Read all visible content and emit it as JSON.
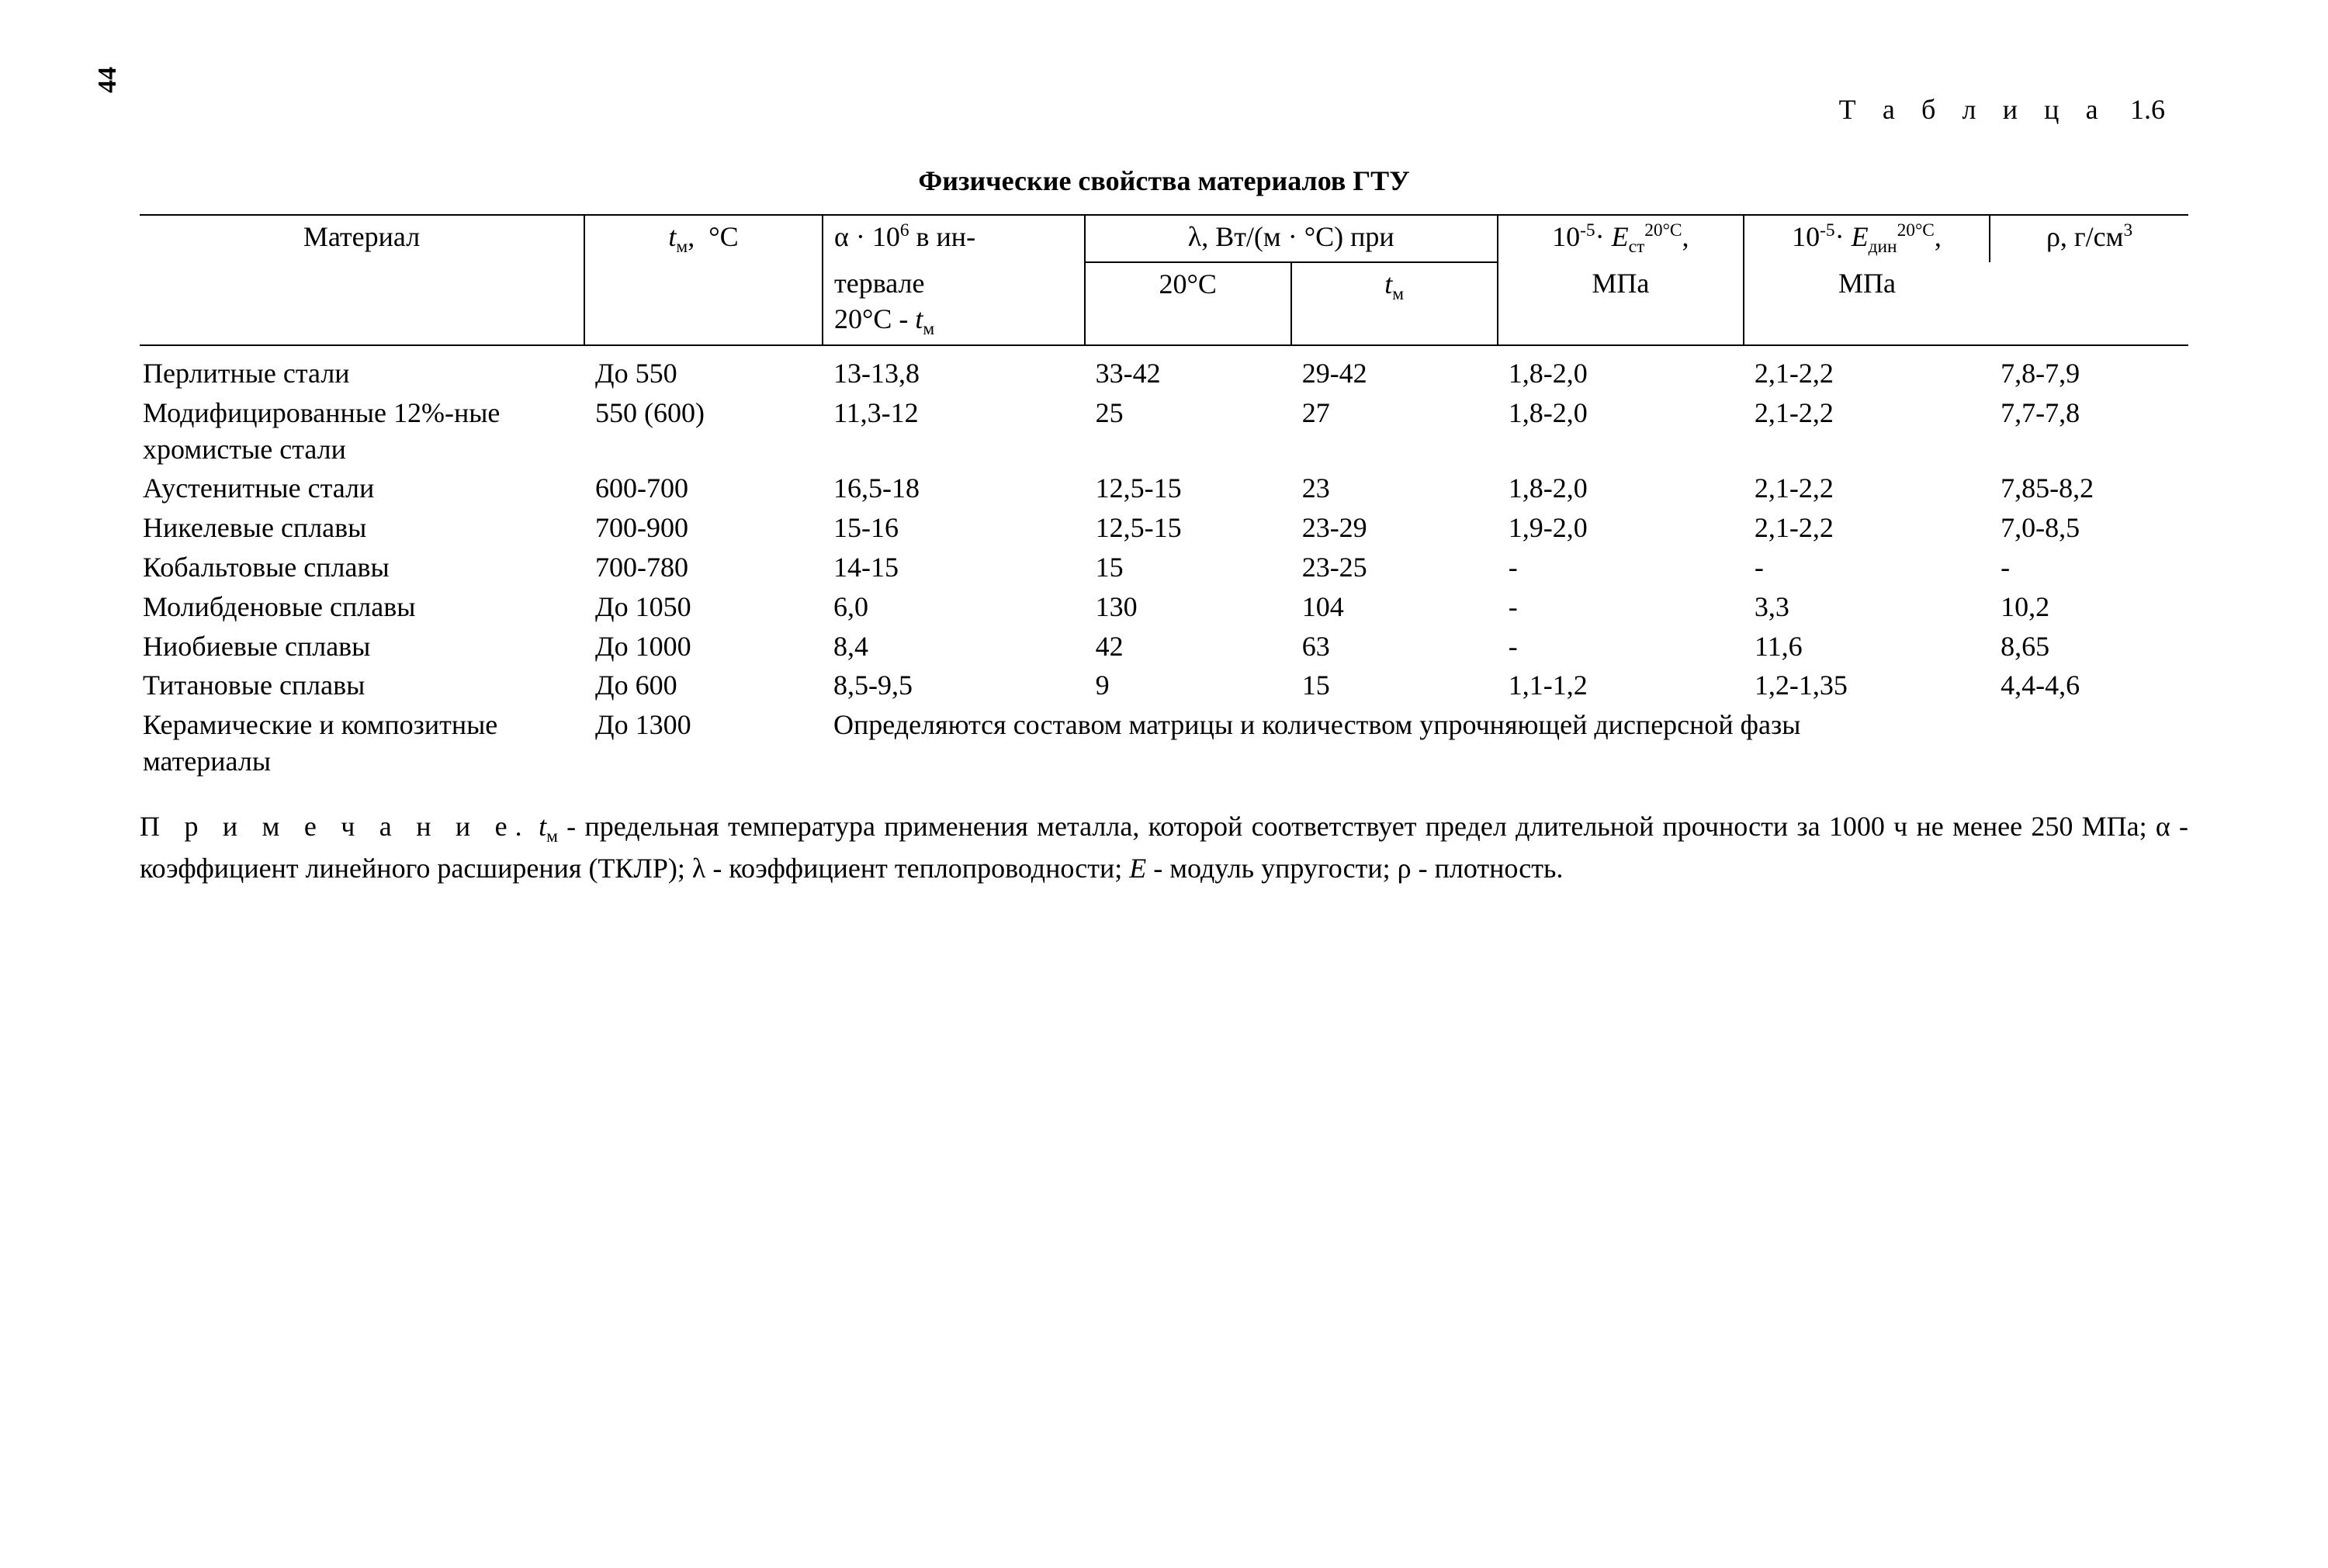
{
  "page_number": "44",
  "table_label_word": "Т а б л и ц а",
  "table_label_num": "1.6",
  "caption": "Физические свойства материалов ГТУ",
  "columns": {
    "material": "Материал",
    "tm_html": "<span class=\"ital\">t</span><span class=\"sub\">м</span>, &nbsp;°С",
    "alpha_top_html": "α · 10<span class=\"sup\">6</span> в ин-",
    "alpha_bot_html": "тервале<br>20°С - <span class=\"ital\">t</span><span class=\"sub\">м</span>",
    "lambda_group_html": "λ, Вт/(м · °С) при",
    "lambda_20": "20°С",
    "lambda_tm_html": "<span class=\"ital\">t</span><span class=\"sub\">м</span>",
    "est_top_html": "10<span class=\"sup\">-5</span>· <span class=\"ital\">E</span><span class=\"sub\">ст</span><span class=\"sup\">20°С</span>,",
    "est_bot": "МПа",
    "edin_top_html": "10<span class=\"sup\">-5</span>· <span class=\"ital\">E</span><span class=\"sub\">дин</span><span class=\"sup\">20°С</span>,",
    "edin_bot": "МПа",
    "rho_html": "ρ, г/см<span class=\"sup\">3</span>"
  },
  "rows": [
    {
      "material": "Перлитные стали",
      "tm": "До 550",
      "alpha": "13-13,8",
      "l20": "33-42",
      "ltm": "29-42",
      "est": "1,8-2,0",
      "edin": "2,1-2,2",
      "rho": "7,8-7,9"
    },
    {
      "material": "Модифицированные 12%-ные хромистые стали",
      "tm": "550 (600)",
      "alpha": "11,3-12",
      "l20": "25",
      "ltm": "27",
      "est": "1,8-2,0",
      "edin": "2,1-2,2",
      "rho": "7,7-7,8"
    },
    {
      "material": "Аустенитные стали",
      "tm": "600-700",
      "alpha": "16,5-18",
      "l20": "12,5-15",
      "ltm": "23",
      "est": "1,8-2,0",
      "edin": "2,1-2,2",
      "rho": "7,85-8,2"
    },
    {
      "material": "Никелевые сплавы",
      "tm": "700-900",
      "alpha": "15-16",
      "l20": "12,5-15",
      "ltm": "23-29",
      "est": "1,9-2,0",
      "edin": "2,1-2,2",
      "rho": "7,0-8,5"
    },
    {
      "material": "Кобальтовые сплавы",
      "tm": "700-780",
      "alpha": "14-15",
      "l20": "15",
      "ltm": "23-25",
      "est": "-",
      "edin": "-",
      "rho": "-"
    },
    {
      "material": "Молибденовые сплавы",
      "tm": "До 1050",
      "alpha": "6,0",
      "l20": "130",
      "ltm": "104",
      "est": "-",
      "edin": "3,3",
      "rho": "10,2"
    },
    {
      "material": "Ниобиевые сплавы",
      "tm": "До 1000",
      "alpha": "8,4",
      "l20": "42",
      "ltm": "63",
      "est": "-",
      "edin": "11,6",
      "rho": "8,65"
    },
    {
      "material": "Титановые сплавы",
      "tm": "До 600",
      "alpha": "8,5-9,5",
      "l20": "9",
      "ltm": "15",
      "est": "1,1-1,2",
      "edin": "1,2-1,35",
      "rho": "4,4-4,6"
    }
  ],
  "ceramic_row": {
    "material": "Керамические и композитные материалы",
    "tm": "До 1300",
    "note": "Определяются составом матрицы и количеством упрочняющей дисперсной фазы"
  },
  "footnote": {
    "lead": "П р и м е ч а н и е.",
    "body_html": "<span class=\"ital\">t</span><span class=\"sub\">м</span> - предельная температура применения металла, которой соответствует предел длительной прочности за 1000 ч не менее 250 МПа; α - коэффициент линейного расширения (ТКЛР); λ - коэффициент теплопроводности; <span class=\"ital\">E</span> - модуль упругости; ρ - плотность."
  }
}
